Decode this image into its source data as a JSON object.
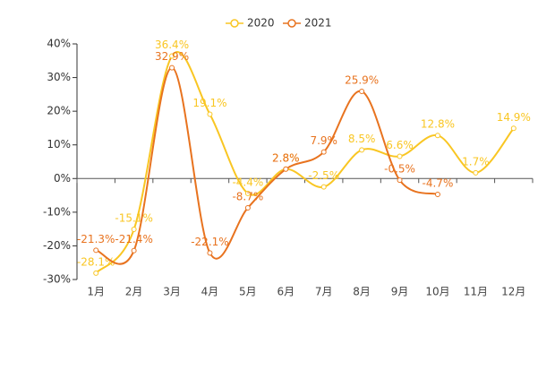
{
  "chart_data": {
    "type": "line",
    "categories": [
      "1月",
      "2月",
      "3月",
      "4月",
      "5月",
      "6月",
      "7月",
      "8月",
      "9月",
      "10月",
      "11月",
      "12月"
    ],
    "series": [
      {
        "name": "2020",
        "color": "#f9c623",
        "values": [
          -28.1,
          -15.1,
          36.4,
          19.1,
          -4.4,
          2.8,
          -2.5,
          8.5,
          6.6,
          12.8,
          1.7,
          14.9
        ],
        "value_labels": [
          "-28.1%",
          "-15.1%",
          "36.4%",
          "19.1%",
          "-4.4%",
          "2.8%",
          "-2.5%",
          "8.5%",
          "6.6%",
          "12.8%",
          "1.7%",
          "14.9%"
        ]
      },
      {
        "name": "2021",
        "color": "#e8731f",
        "values": [
          -21.3,
          -21.4,
          32.9,
          -22.1,
          -8.7,
          2.8,
          7.9,
          25.9,
          -0.5,
          -4.7,
          null,
          null
        ],
        "value_labels": [
          "-21.3%",
          "-21.4%",
          "32.9%",
          "-22.1%",
          "-8.7%",
          "2.8%",
          "7.9%",
          "25.9%",
          "-0.5%",
          "-4.7%",
          null,
          null
        ]
      }
    ],
    "ylim": [
      -30,
      40
    ],
    "yticks": [
      {
        "value": -30,
        "label": "-30%"
      },
      {
        "value": -20,
        "label": "-20%"
      },
      {
        "value": -10,
        "label": "-10%"
      },
      {
        "value": 0,
        "label": "0%"
      },
      {
        "value": 10,
        "label": "10%"
      },
      {
        "value": 20,
        "label": "20%"
      },
      {
        "value": 30,
        "label": "30%"
      },
      {
        "value": 40,
        "label": "40%"
      }
    ],
    "grid": false,
    "legend": "top",
    "smooth": true
  }
}
